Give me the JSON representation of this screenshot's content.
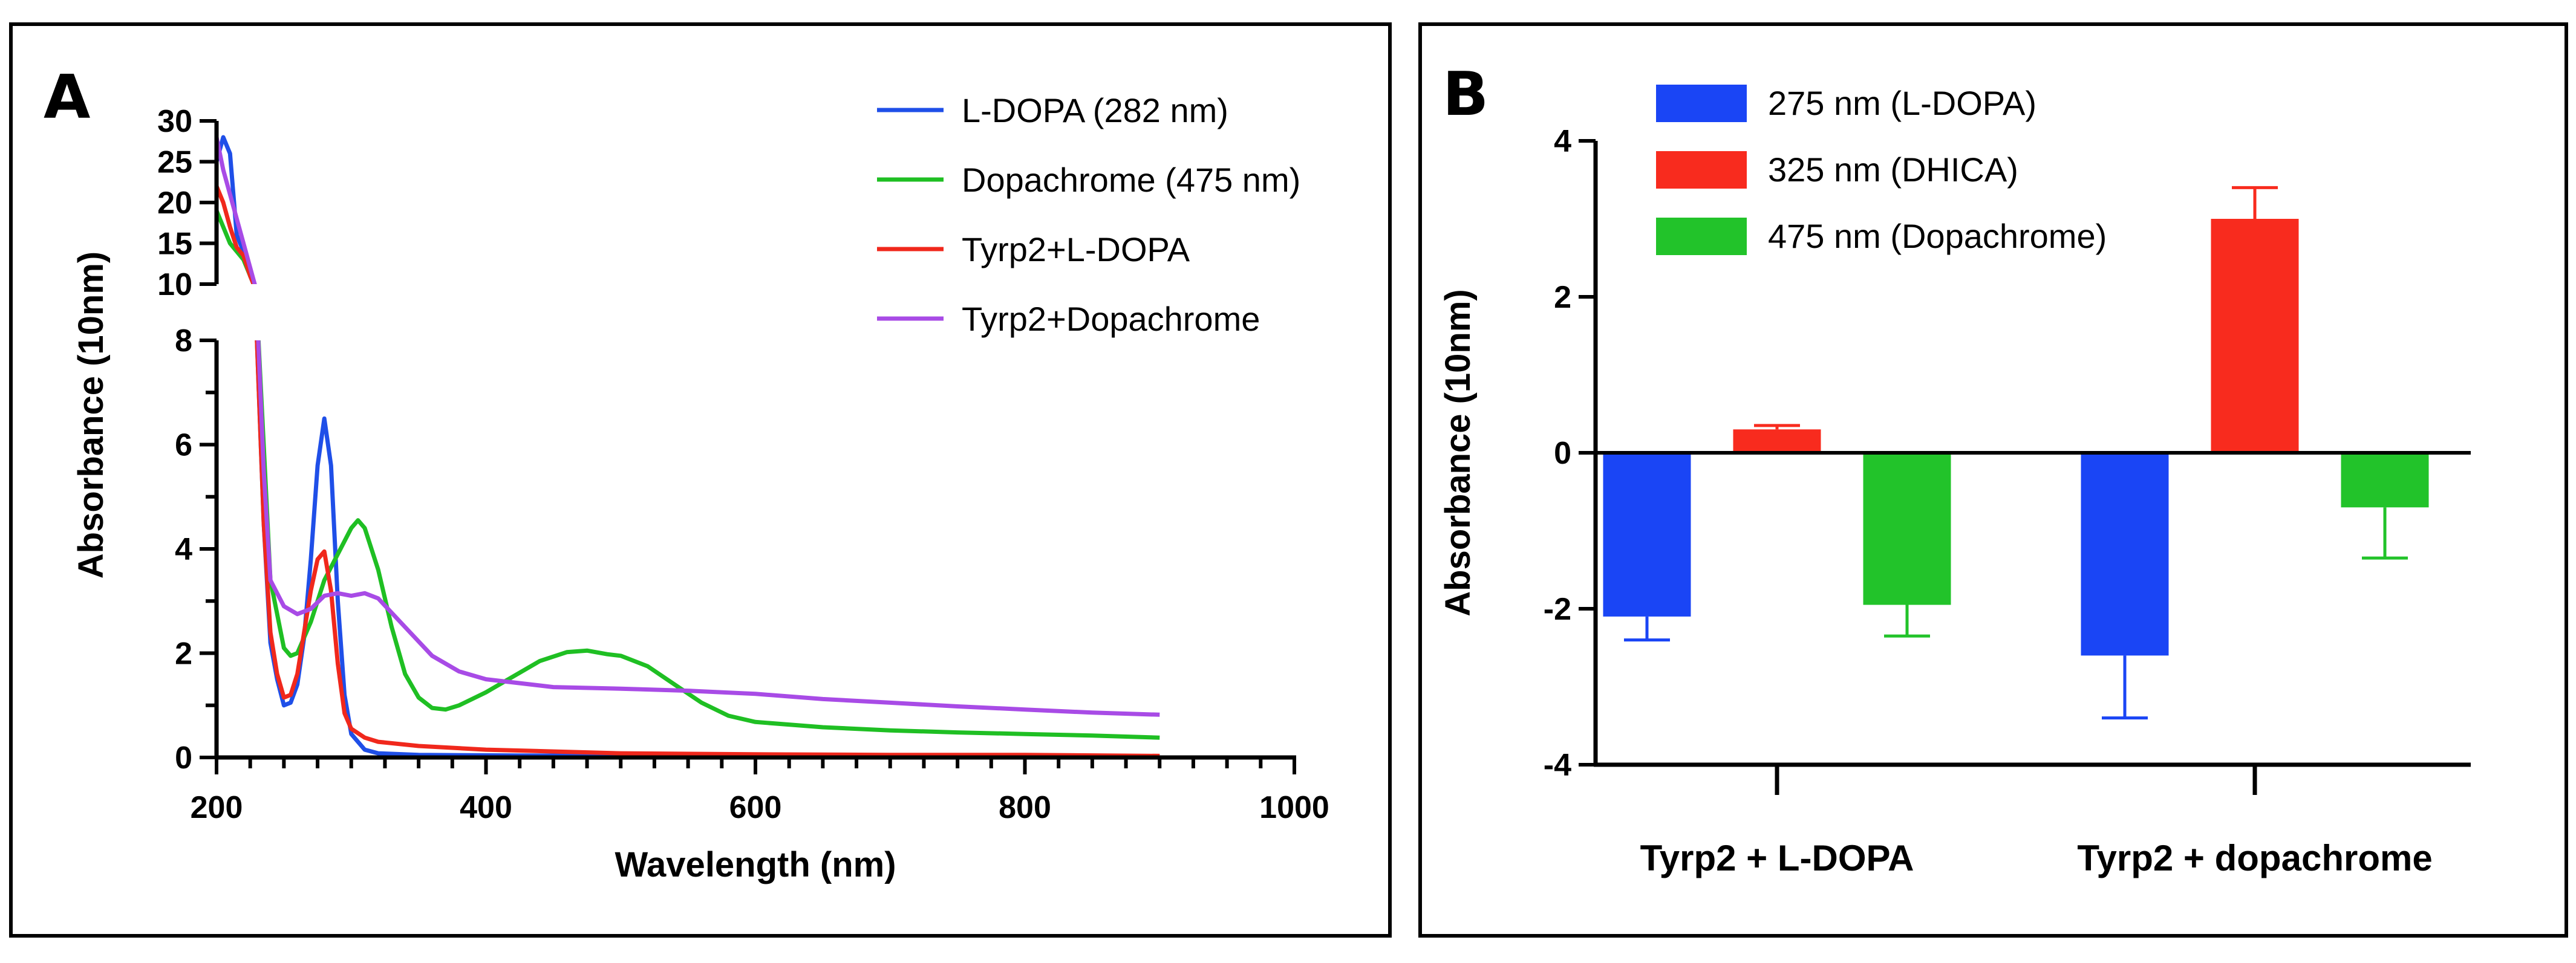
{
  "panels": {
    "a_label": "A",
    "b_label": "B"
  },
  "chart_data": [
    {
      "type": "line",
      "panel": "A",
      "xlabel": "Wavelength (nm)",
      "ylabel": "Absorbance (10nm)",
      "xlim": [
        200,
        1000
      ],
      "ylim_lower": [
        0,
        8
      ],
      "ylim_upper": [
        10,
        30
      ],
      "broken_y_axis": true,
      "x_ticks": [
        "200",
        "400",
        "600",
        "800",
        "1000"
      ],
      "y_ticks_lower": [
        "0",
        "2",
        "4",
        "6",
        "8"
      ],
      "y_ticks_upper": [
        "10",
        "15",
        "20",
        "25",
        "30"
      ],
      "legend_position": "top-right",
      "series": [
        {
          "name": "L-DOPA (282 nm)",
          "color": "#1f4fe8",
          "x": [
            200,
            205,
            210,
            215,
            220,
            225,
            230,
            235,
            240,
            245,
            250,
            255,
            260,
            265,
            270,
            275,
            280,
            285,
            290,
            295,
            300,
            310,
            320,
            350,
            400,
            500,
            600,
            700,
            800,
            900
          ],
          "y": [
            25,
            28,
            26,
            16,
            14,
            11,
            8,
            4.5,
            2.2,
            1.5,
            1.0,
            1.05,
            1.4,
            2.3,
            3.8,
            5.6,
            6.5,
            5.6,
            3.0,
            1.2,
            0.45,
            0.15,
            0.08,
            0.05,
            0.04,
            0.03,
            0.03,
            0.03,
            0.03,
            0.02
          ]
        },
        {
          "name": "Dopachrome (475 nm)",
          "color": "#1fbf23",
          "x": [
            200,
            210,
            220,
            230,
            240,
            250,
            255,
            260,
            270,
            280,
            290,
            300,
            305,
            310,
            320,
            330,
            340,
            350,
            360,
            370,
            380,
            400,
            420,
            440,
            460,
            475,
            490,
            500,
            520,
            540,
            560,
            580,
            600,
            650,
            700,
            750,
            800,
            850,
            900
          ],
          "y": [
            19,
            15,
            13,
            9,
            3.4,
            2.1,
            1.95,
            2.0,
            2.6,
            3.4,
            3.9,
            4.4,
            4.55,
            4.4,
            3.6,
            2.5,
            1.6,
            1.15,
            0.95,
            0.92,
            1.0,
            1.25,
            1.55,
            1.85,
            2.02,
            2.05,
            1.98,
            1.95,
            1.75,
            1.4,
            1.05,
            0.8,
            0.68,
            0.58,
            0.52,
            0.48,
            0.45,
            0.42,
            0.38
          ]
        },
        {
          "name": "Tyrp2+L-DOPA",
          "color": "#f0281c",
          "x": [
            200,
            205,
            210,
            215,
            220,
            225,
            230,
            235,
            240,
            245,
            250,
            255,
            260,
            265,
            270,
            275,
            280,
            285,
            290,
            295,
            300,
            310,
            320,
            350,
            400,
            500,
            600,
            700,
            800,
            900
          ],
          "y": [
            22,
            20,
            17,
            14.5,
            13.5,
            11,
            8,
            4.5,
            2.4,
            1.6,
            1.15,
            1.2,
            1.6,
            2.4,
            3.2,
            3.8,
            3.95,
            3.2,
            1.8,
            0.85,
            0.55,
            0.38,
            0.3,
            0.22,
            0.15,
            0.08,
            0.06,
            0.05,
            0.05,
            0.03
          ]
        },
        {
          "name": "Tyrp2+Dopachrome",
          "color": "#a84be6",
          "x": [
            200,
            205,
            210,
            220,
            230,
            235,
            240,
            250,
            260,
            270,
            280,
            290,
            300,
            310,
            320,
            340,
            360,
            380,
            400,
            450,
            500,
            550,
            600,
            650,
            700,
            750,
            800,
            850,
            900
          ],
          "y": [
            28,
            24,
            21,
            15,
            9,
            5.5,
            3.4,
            2.9,
            2.75,
            2.85,
            3.1,
            3.15,
            3.1,
            3.15,
            3.05,
            2.5,
            1.95,
            1.65,
            1.5,
            1.35,
            1.32,
            1.28,
            1.22,
            1.12,
            1.05,
            0.98,
            0.92,
            0.86,
            0.82
          ]
        }
      ]
    },
    {
      "type": "bar",
      "panel": "B",
      "ylabel": "Absorbance (10nm)",
      "ylim": [
        -4,
        4
      ],
      "y_ticks": [
        "-4",
        "-2",
        "0",
        "2",
        "4"
      ],
      "categories": [
        "Tyrp2 + L-DOPA",
        "Tyrp2 + dopachrome"
      ],
      "legend_position": "top-left",
      "series": [
        {
          "name": "275 nm (L-DOPA)",
          "color": "#1a45f5",
          "values": [
            -2.1,
            -2.6
          ],
          "errors": [
            0.3,
            0.8
          ]
        },
        {
          "name": "325 nm (DHICA)",
          "color": "#f82b1e",
          "values": [
            0.3,
            3.0
          ],
          "errors": [
            0.05,
            0.4
          ]
        },
        {
          "name": "475 nm (Dopachrome)",
          "color": "#22c32a",
          "values": [
            -1.95,
            -0.7
          ],
          "errors": [
            0.4,
            0.65
          ]
        }
      ]
    }
  ]
}
